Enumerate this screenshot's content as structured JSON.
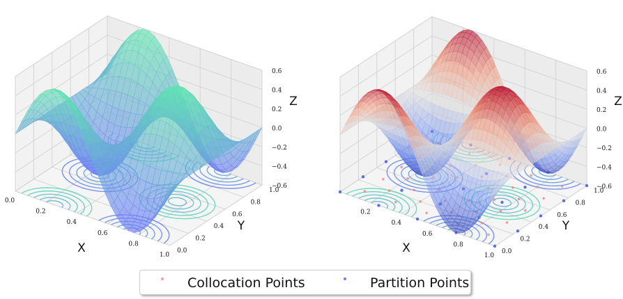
{
  "chart_data": [
    {
      "type": "surface",
      "panel": "left",
      "function": "z = 0.6 * sin(2*pi*x) * cos(2*pi*y)",
      "x": [
        0.0,
        0.2,
        0.4,
        0.6,
        0.8,
        1.0
      ],
      "y": [
        0.0,
        0.2,
        0.4,
        0.6,
        0.8,
        1.0
      ],
      "z_grid": [
        [
          0.0,
          0.571,
          0.353,
          -0.353,
          -0.571,
          0.0
        ],
        [
          0.0,
          0.176,
          0.109,
          -0.109,
          -0.176,
          0.0
        ],
        [
          0.0,
          -0.462,
          -0.285,
          0.285,
          0.462,
          0.0
        ],
        [
          0.0,
          -0.462,
          -0.285,
          0.285,
          0.462,
          0.0
        ],
        [
          0.0,
          0.176,
          0.109,
          -0.109,
          -0.176,
          0.0
        ],
        [
          0.0,
          0.571,
          0.353,
          -0.353,
          -0.571,
          0.0
        ]
      ],
      "colormap": "winter",
      "contours": "projected onto floor",
      "xlabel": "X",
      "ylabel": "Y",
      "zlabel": "Z",
      "xlim": [
        0,
        1
      ],
      "ylim": [
        0,
        1
      ],
      "zlim": [
        -0.6,
        0.6
      ],
      "x_ticks": [
        "0.0",
        "0.2",
        "0.4",
        "0.6",
        "0.8",
        "1.0"
      ],
      "y_ticks": [
        "0.0",
        "0.2",
        "0.4",
        "0.6",
        "0.8",
        "1.0"
      ],
      "z_ticks": [
        "0.6",
        "0.4",
        "0.2",
        "0.0",
        "−0.2",
        "−0.4",
        "−0.6"
      ],
      "grid": true
    },
    {
      "type": "surface",
      "panel": "right",
      "function": "z = 0.6 * sin(2*pi*x) * cos(2*pi*y)",
      "colormap": "coolwarm (wireframe)",
      "contours": "projected onto floor",
      "xlabel": "X",
      "ylabel": "Y",
      "zlabel": "Z",
      "xlim": [
        0,
        1
      ],
      "ylim": [
        0,
        1
      ],
      "zlim": [
        -0.6,
        0.6
      ],
      "x_ticks": [
        "0.2",
        "0.4",
        "0.6",
        "0.8",
        "1.0"
      ],
      "y_ticks": [
        "0.0",
        "0.2",
        "0.4",
        "0.6",
        "0.8",
        "1.0"
      ],
      "z_ticks": [
        "0.6",
        "0.4",
        "0.2",
        "0.0",
        "−0.2",
        "−0.4",
        "−0.6"
      ],
      "series": [
        {
          "name": "Collocation Points",
          "color": "#f07f7f",
          "points": [
            [
              0.1,
              0.1
            ],
            [
              0.3,
              0.1
            ],
            [
              0.5,
              0.1
            ],
            [
              0.7,
              0.1
            ],
            [
              0.9,
              0.1
            ],
            [
              0.1,
              0.3
            ],
            [
              0.3,
              0.3
            ],
            [
              0.5,
              0.3
            ],
            [
              0.7,
              0.3
            ],
            [
              0.9,
              0.3
            ],
            [
              0.1,
              0.5
            ],
            [
              0.3,
              0.5
            ],
            [
              0.5,
              0.5
            ],
            [
              0.7,
              0.5
            ],
            [
              0.9,
              0.5
            ],
            [
              0.1,
              0.7
            ],
            [
              0.3,
              0.7
            ],
            [
              0.5,
              0.7
            ],
            [
              0.7,
              0.7
            ],
            [
              0.9,
              0.7
            ],
            [
              0.1,
              0.9
            ],
            [
              0.3,
              0.9
            ],
            [
              0.5,
              0.9
            ],
            [
              0.7,
              0.9
            ],
            [
              0.9,
              0.9
            ],
            [
              0.2,
              0.2
            ],
            [
              0.4,
              0.2
            ],
            [
              0.6,
              0.2
            ],
            [
              0.8,
              0.2
            ],
            [
              0.2,
              0.4
            ],
            [
              0.4,
              0.4
            ],
            [
              0.6,
              0.4
            ],
            [
              0.8,
              0.4
            ],
            [
              0.2,
              0.6
            ],
            [
              0.4,
              0.6
            ],
            [
              0.6,
              0.6
            ],
            [
              0.8,
              0.6
            ],
            [
              0.2,
              0.8
            ],
            [
              0.4,
              0.8
            ],
            [
              0.6,
              0.8
            ],
            [
              0.8,
              0.8
            ]
          ]
        },
        {
          "name": "Partition Points",
          "color": "#4a5ee8",
          "points": [
            [
              0.0,
              0.0
            ],
            [
              0.25,
              0.0
            ],
            [
              0.5,
              0.0
            ],
            [
              0.75,
              0.0
            ],
            [
              1.0,
              0.0
            ],
            [
              0.0,
              0.25
            ],
            [
              0.25,
              0.25
            ],
            [
              0.5,
              0.25
            ],
            [
              0.75,
              0.25
            ],
            [
              1.0,
              0.25
            ],
            [
              0.0,
              0.5
            ],
            [
              0.25,
              0.5
            ],
            [
              0.5,
              0.5
            ],
            [
              0.75,
              0.5
            ],
            [
              1.0,
              0.5
            ],
            [
              0.0,
              0.75
            ],
            [
              0.25,
              0.75
            ],
            [
              0.5,
              0.75
            ],
            [
              0.75,
              0.75
            ],
            [
              1.0,
              0.75
            ],
            [
              0.0,
              1.0
            ],
            [
              0.25,
              1.0
            ],
            [
              0.5,
              1.0
            ],
            [
              0.75,
              1.0
            ],
            [
              1.0,
              1.0
            ]
          ]
        }
      ],
      "grid": true
    }
  ],
  "legend": {
    "items": [
      {
        "label": "Collocation Points",
        "color": "#f07f7f"
      },
      {
        "label": "Partition Points",
        "color": "#4a5ee8"
      }
    ],
    "placement": "bottom-center"
  }
}
